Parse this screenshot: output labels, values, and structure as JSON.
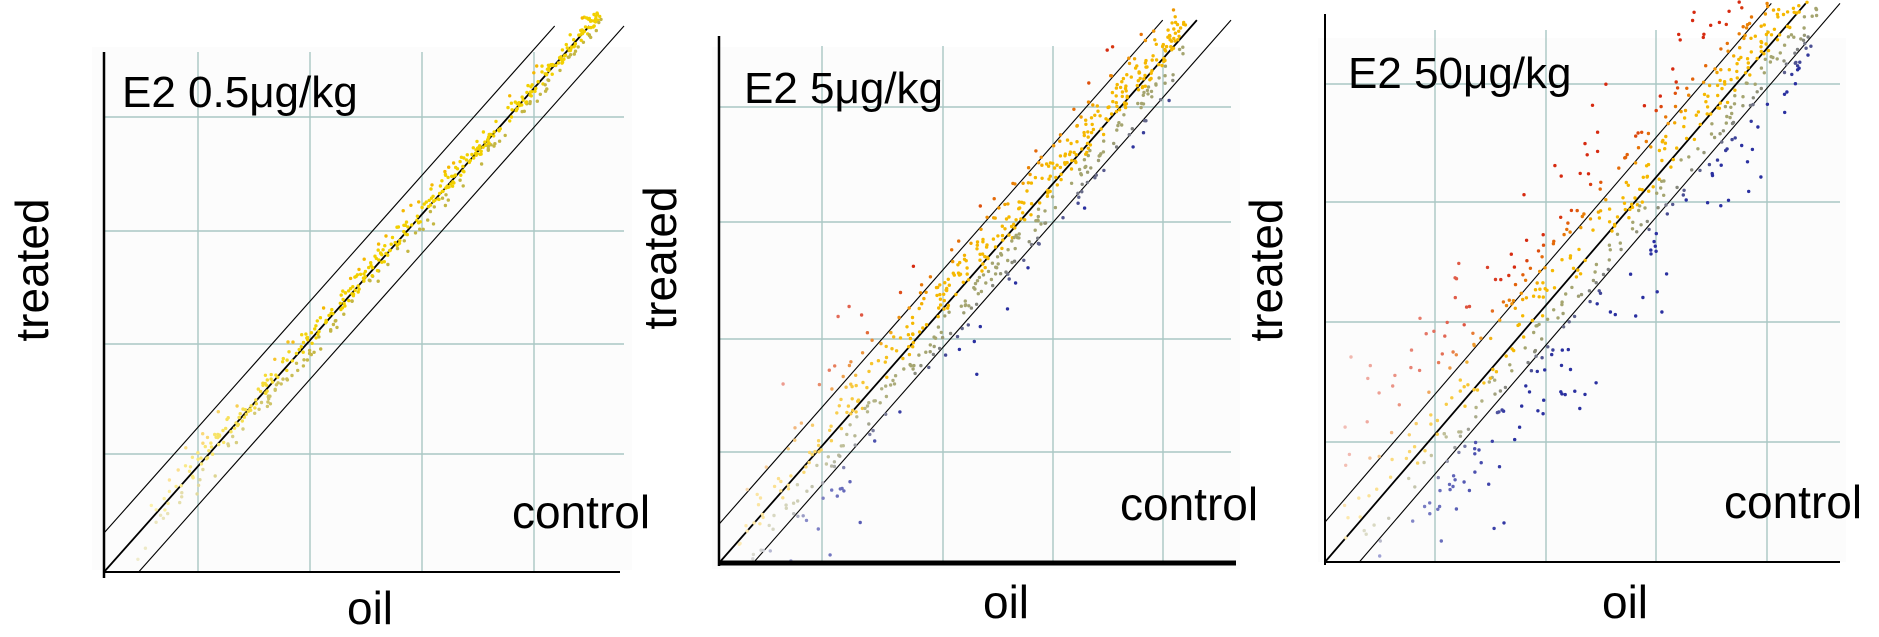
{
  "figure": {
    "panels": [
      {
        "title": "E2 0.5μg/kg",
        "ylabel": "treated",
        "xlabel": "oil",
        "corner_label": "control"
      },
      {
        "title": "E2 5μg/kg",
        "ylabel": "treated",
        "xlabel": "oil",
        "corner_label": "control"
      },
      {
        "title": "E2 50μg/kg",
        "ylabel": "treated",
        "xlabel": "oil",
        "corner_label": "control"
      }
    ]
  },
  "chart_data": [
    {
      "type": "scatter",
      "title": "E2 0.5μg/kg",
      "xlabel": "oil",
      "ylabel": "treated",
      "annotations": [
        "control"
      ],
      "xlim": [
        0,
        4.5
      ],
      "ylim": [
        0,
        4
      ],
      "grid": true,
      "reference_lines": [
        {
          "slope": 1,
          "intercept": 0,
          "style": "solid"
        },
        {
          "slope": 1,
          "intercept": 0.3,
          "style": "thin"
        },
        {
          "slope": 1,
          "intercept": -0.3,
          "style": "thin"
        }
      ],
      "point_cloud": {
        "n": 520,
        "x_range": [
          0.25,
          4.4
        ],
        "mean_offset": 0.0,
        "spread": 0.07,
        "dominant_color": "#f2d000"
      },
      "color_scale": {
        "up": "#d62a10",
        "mid": "#f5b800",
        "neutral": "#a5a570",
        "down": "#2a30a0"
      }
    },
    {
      "type": "scatter",
      "title": "E2 5μg/kg",
      "xlabel": "oil",
      "ylabel": "treated",
      "annotations": [
        "control"
      ],
      "xlim": [
        0,
        4.5
      ],
      "ylim": [
        0,
        4
      ],
      "grid": true,
      "reference_lines": [
        {
          "slope": 1,
          "intercept": 0,
          "style": "solid"
        },
        {
          "slope": 1,
          "intercept": 0.3,
          "style": "thin"
        },
        {
          "slope": 1,
          "intercept": -0.3,
          "style": "thin"
        }
      ],
      "point_cloud": {
        "n": 620,
        "x_range": [
          0.1,
          4.1
        ],
        "mean_offset": 0.0,
        "spread": 0.22,
        "dominant_color": "#f5b800"
      },
      "color_scale": {
        "up": "#d62a10",
        "mid": "#f5b800",
        "neutral": "#a5a570",
        "down": "#2a30a0"
      }
    },
    {
      "type": "scatter",
      "title": "E2 50μg/kg",
      "xlabel": "oil",
      "ylabel": "treated",
      "annotations": [
        "control"
      ],
      "xlim": [
        0,
        4.5
      ],
      "ylim": [
        0,
        4
      ],
      "grid": true,
      "reference_lines": [
        {
          "slope": 1,
          "intercept": 0,
          "style": "solid"
        },
        {
          "slope": 1,
          "intercept": 0.3,
          "style": "thin"
        },
        {
          "slope": 1,
          "intercept": -0.3,
          "style": "thin"
        }
      ],
      "point_cloud": {
        "n": 640,
        "x_range": [
          0.05,
          4.3
        ],
        "mean_offset": 0.0,
        "spread": 0.42,
        "dominant_color": "#e86a10"
      },
      "color_scale": {
        "up": "#d62a10",
        "mid": "#f5b800",
        "neutral": "#a5a570",
        "down": "#2a30a0"
      }
    }
  ]
}
